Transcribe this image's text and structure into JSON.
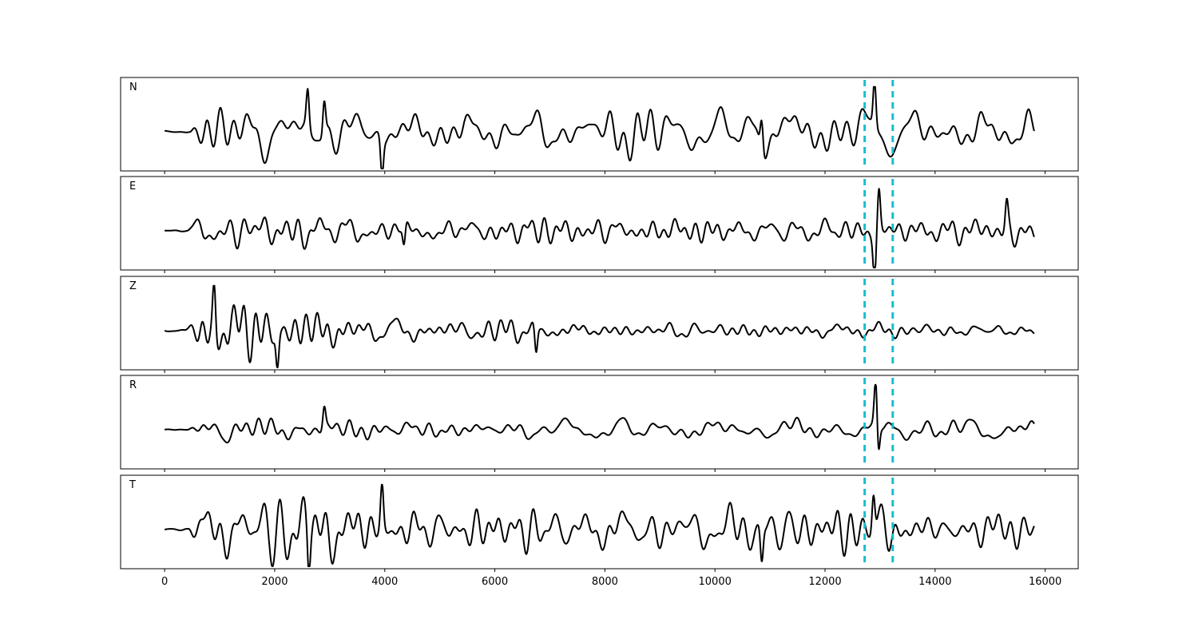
{
  "chart_data": {
    "type": "line",
    "title": "",
    "xlabel": "",
    "ylabel": "",
    "xlim": [
      -800,
      16600
    ],
    "x_ticks": [
      0,
      2000,
      4000,
      6000,
      8000,
      10000,
      12000,
      14000,
      16000
    ],
    "x_tick_labels": [
      "0",
      "2000",
      "4000",
      "6000",
      "8000",
      "10000",
      "12000",
      "14000",
      "16000"
    ],
    "data_range": [
      0,
      15800
    ],
    "grid": false,
    "legend": "none",
    "trace_color": "#000000",
    "marker_color": "#17becf",
    "vertical_markers": [
      12720,
      13230
    ],
    "panels": [
      {
        "label": "N",
        "seed": 11,
        "onset": 450,
        "env": [
          0.55,
          0.75,
          0.62,
          0.58,
          0.52,
          0.58,
          0.62,
          0.55,
          0.52,
          0.62,
          0.48,
          0.58
        ],
        "spikes": [
          {
            "x": 2600,
            "a": 0.8
          },
          {
            "x": 2900,
            "a": 0.75
          },
          {
            "x": 3950,
            "a": -0.8
          },
          {
            "x": 10850,
            "a": 0.7
          },
          {
            "x": 12900,
            "a": 1.0
          }
        ]
      },
      {
        "label": "E",
        "seed": 23,
        "onset": 400,
        "env": [
          0.35,
          0.45,
          0.4,
          0.4,
          0.35,
          0.32,
          0.28,
          0.3,
          0.26,
          0.22,
          0.28,
          0.32
        ],
        "spikes": [
          {
            "x": 4350,
            "a": -0.5
          },
          {
            "x": 12900,
            "a": -0.95
          },
          {
            "x": 12980,
            "a": 0.8
          },
          {
            "x": 15300,
            "a": 0.5
          }
        ]
      },
      {
        "label": "Z",
        "seed": 37,
        "onset": 380,
        "env": [
          0.55,
          0.65,
          0.45,
          0.35,
          0.3,
          0.25,
          0.2,
          0.18,
          0.18,
          0.18,
          0.18,
          0.2
        ],
        "spikes": [
          {
            "x": 900,
            "a": 0.95
          },
          {
            "x": 2050,
            "a": -0.75
          },
          {
            "x": 6750,
            "a": -0.6
          }
        ]
      },
      {
        "label": "R",
        "seed": 49,
        "onset": 400,
        "env": [
          0.22,
          0.3,
          0.28,
          0.28,
          0.28,
          0.3,
          0.3,
          0.25,
          0.25,
          0.25,
          0.28,
          0.3
        ],
        "spikes": [
          {
            "x": 2900,
            "a": 0.45
          },
          {
            "x": 12920,
            "a": 1.0
          },
          {
            "x": 12970,
            "a": -0.6
          }
        ]
      },
      {
        "label": "T",
        "seed": 61,
        "onset": 420,
        "env": [
          0.55,
          0.75,
          0.7,
          0.62,
          0.6,
          0.6,
          0.58,
          0.52,
          0.52,
          0.55,
          0.5,
          0.55
        ],
        "spikes": [
          {
            "x": 2620,
            "a": -0.85
          },
          {
            "x": 3950,
            "a": 0.9
          },
          {
            "x": 12880,
            "a": 0.8
          },
          {
            "x": 10850,
            "a": -0.75
          }
        ]
      }
    ]
  }
}
